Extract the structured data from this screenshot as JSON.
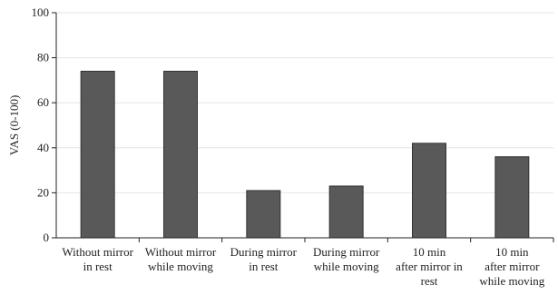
{
  "chart_data": {
    "type": "bar",
    "title": "",
    "xlabel": "",
    "ylabel": "VAS (0-100)",
    "ylim": [
      0,
      100
    ],
    "yticks": [
      0,
      20,
      40,
      60,
      80,
      100
    ],
    "grid": true,
    "categories": [
      [
        "Without mirror",
        "in rest"
      ],
      [
        "Without mirror",
        "while moving"
      ],
      [
        "During mirror",
        "in rest"
      ],
      [
        "During mirror",
        "while moving"
      ],
      [
        "10 min",
        "after mirror in",
        "rest"
      ],
      [
        "10 min",
        "after mirror",
        "while moving"
      ]
    ],
    "values": [
      74,
      74,
      21,
      23,
      42,
      36
    ],
    "colors": {
      "bar": "#595959",
      "bar_stroke": "#333333",
      "grid": "#e6e6e6",
      "axis": "#222222"
    }
  }
}
